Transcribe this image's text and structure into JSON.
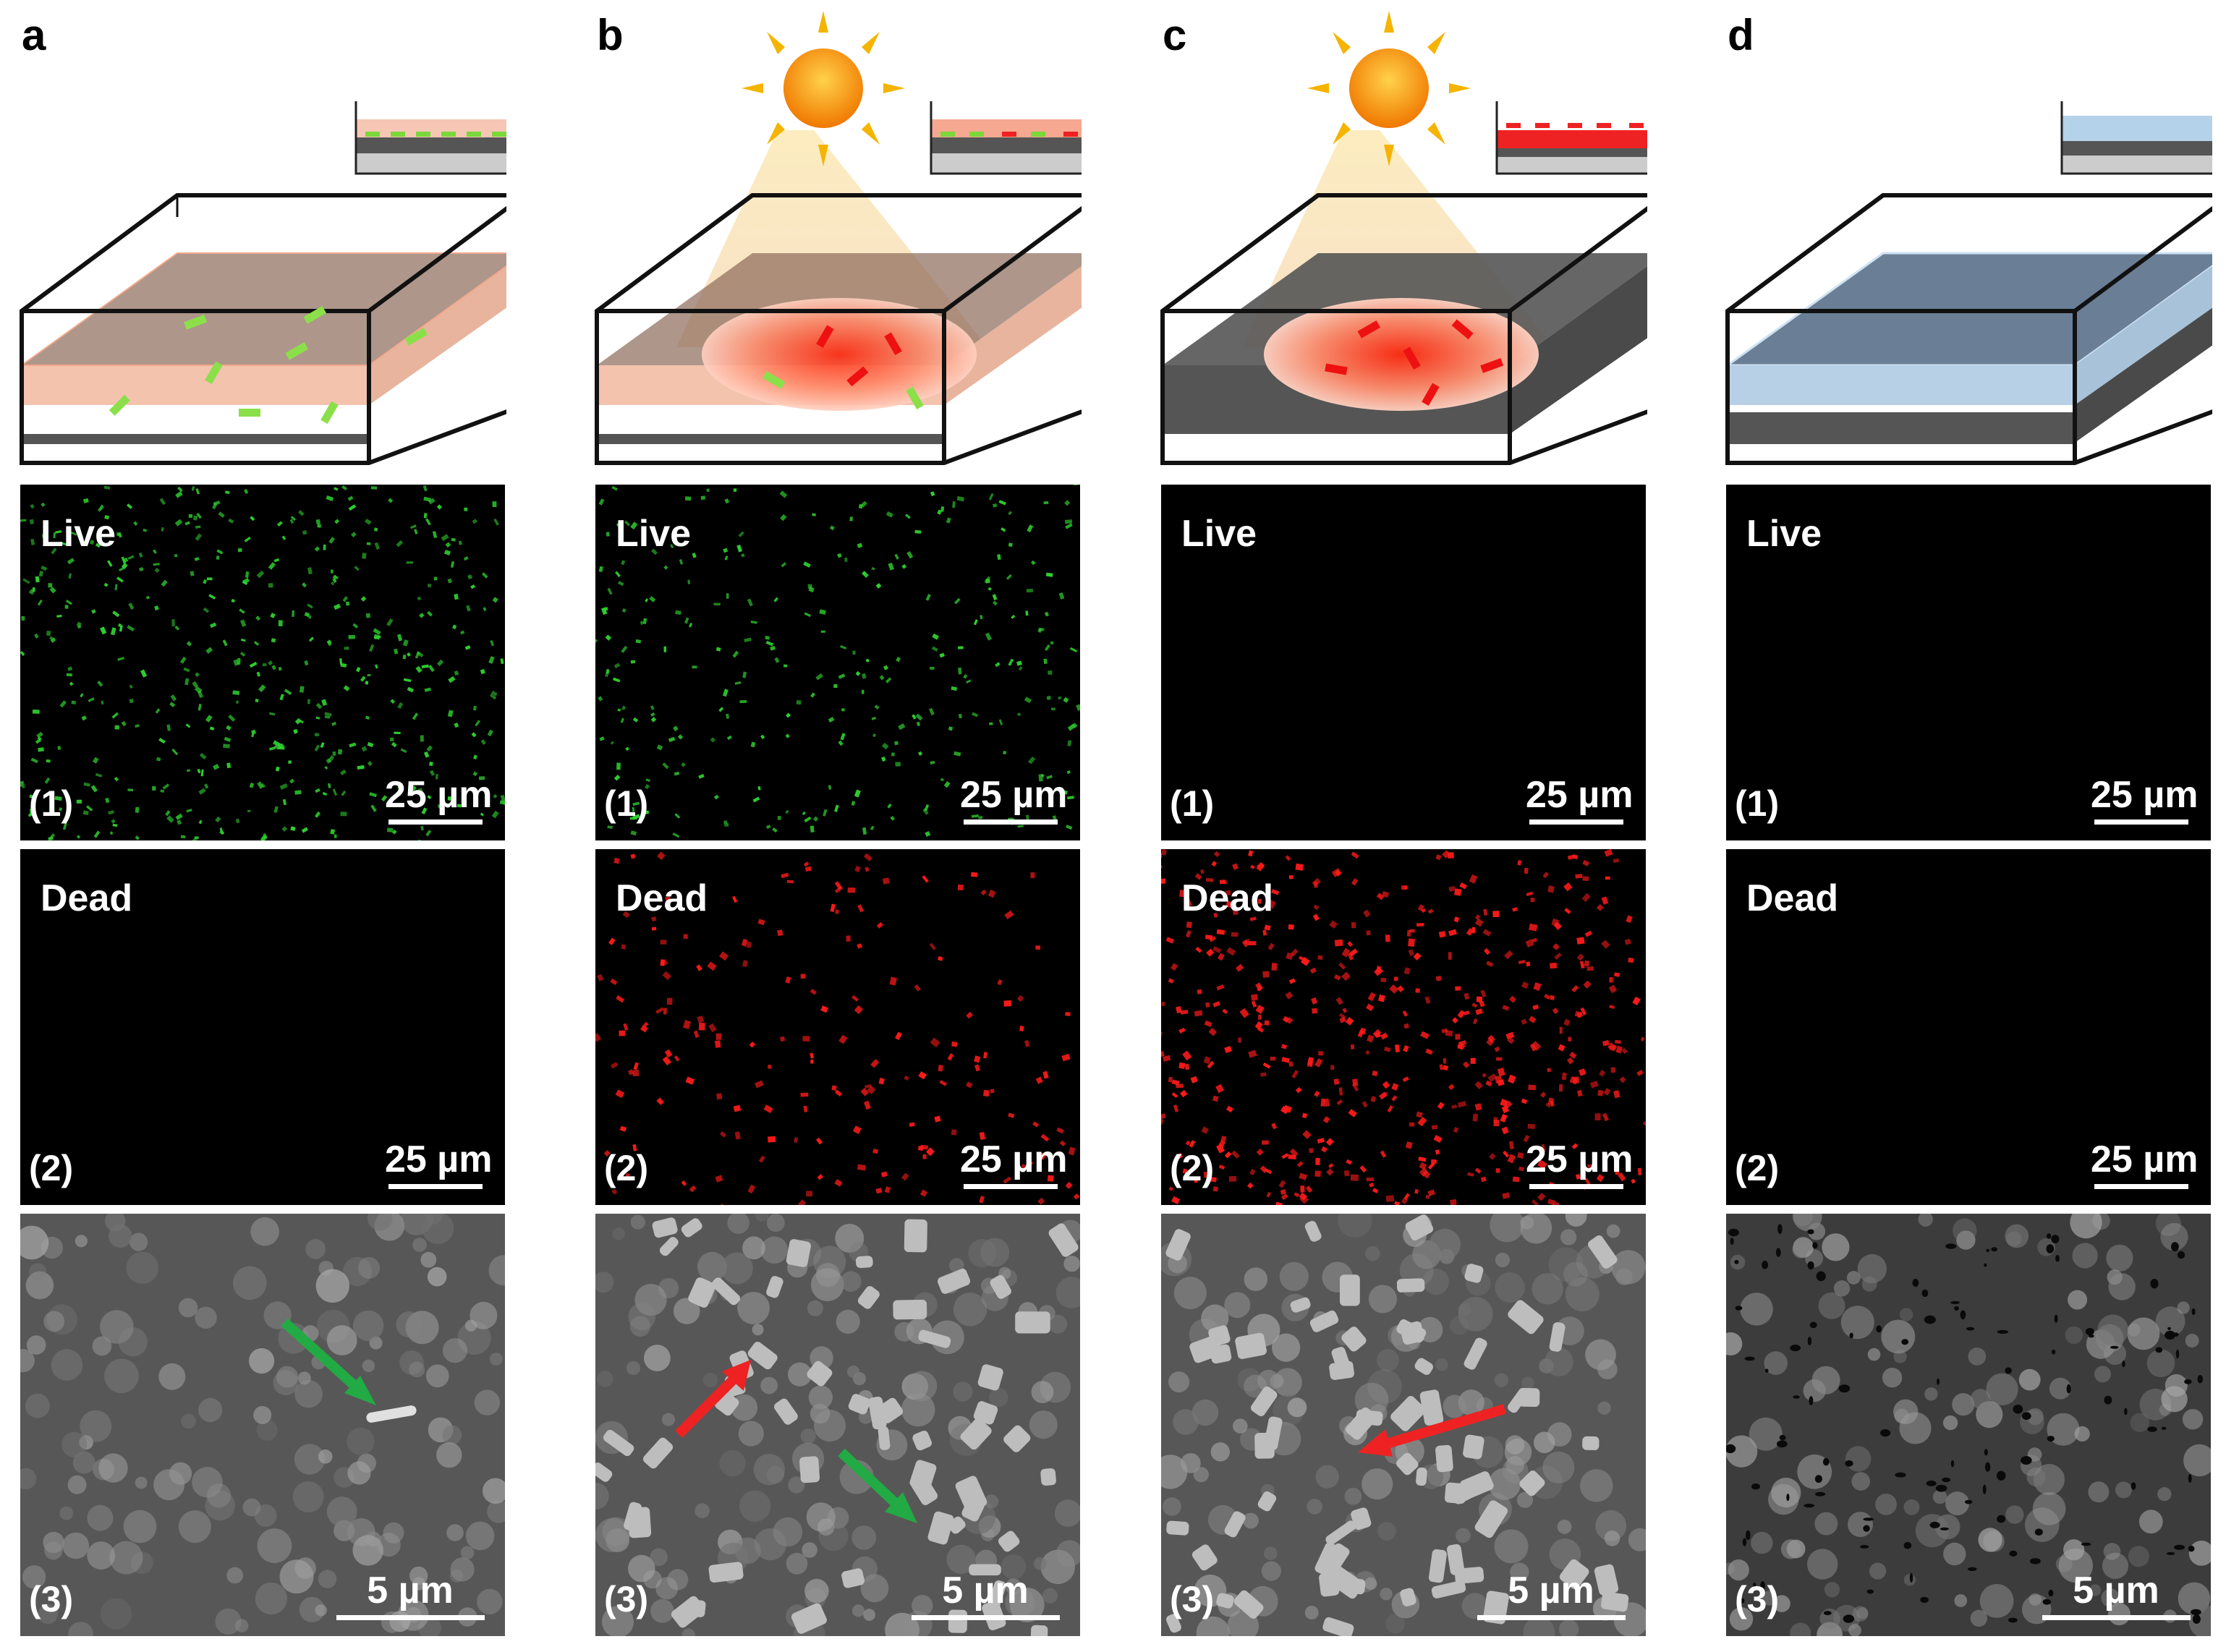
{
  "columns": [
    {
      "letter": "a",
      "live": "Live",
      "dead": "Dead",
      "live_num": "(1)",
      "dead_num": "(2)",
      "sem_num": "(3)",
      "scale_fluor": "25 µm",
      "scale_sem": "5 µm"
    },
    {
      "letter": "b",
      "live": "Live",
      "dead": "Dead",
      "live_num": "(1)",
      "dead_num": "(2)",
      "sem_num": "(3)",
      "scale_fluor": "25 µm",
      "scale_sem": "5 µm"
    },
    {
      "letter": "c",
      "live": "Live",
      "dead": "Dead",
      "live_num": "(1)",
      "dead_num": "(2)",
      "sem_num": "(3)",
      "scale_fluor": "25 µm",
      "scale_sem": "5 µm"
    },
    {
      "letter": "d",
      "live": "Live",
      "dead": "Dead",
      "live_num": "(1)",
      "dead_num": "(2)",
      "sem_num": "(3)",
      "scale_fluor": "25 µm",
      "scale_sem": "5 µm"
    }
  ],
  "colors": {
    "live": "#2fd12f",
    "dead": "#ff1a1a",
    "arrow_green": "#22aa44",
    "arrow_red": "#ee2222",
    "sun": "#f28a00"
  },
  "density": {
    "live": [
      0.9,
      0.55,
      0,
      0
    ],
    "dead": [
      0,
      0.35,
      0.95,
      0
    ]
  }
}
